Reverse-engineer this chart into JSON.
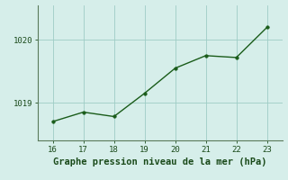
{
  "x": [
    16,
    17,
    18,
    19,
    20,
    21,
    22,
    23
  ],
  "y": [
    1018.7,
    1018.85,
    1018.78,
    1019.15,
    1019.55,
    1019.75,
    1019.72,
    1020.2
  ],
  "line_color": "#1a5c1a",
  "marker_color": "#1a5c1a",
  "bg_color": "#d6eeea",
  "grid_color": "#9eccc5",
  "axis_color": "#5a7a5a",
  "xlabel": "Graphe pression niveau de la mer (hPa)",
  "xlabel_color": "#1a4a1a",
  "tick_color": "#1a4a1a",
  "xlim": [
    15.5,
    23.5
  ],
  "ylim": [
    1018.4,
    1020.55
  ],
  "yticks": [
    1019,
    1020
  ],
  "xticks": [
    16,
    17,
    18,
    19,
    20,
    21,
    22,
    23
  ],
  "fontsize_ticks": 6.5,
  "fontsize_xlabel": 7.5
}
